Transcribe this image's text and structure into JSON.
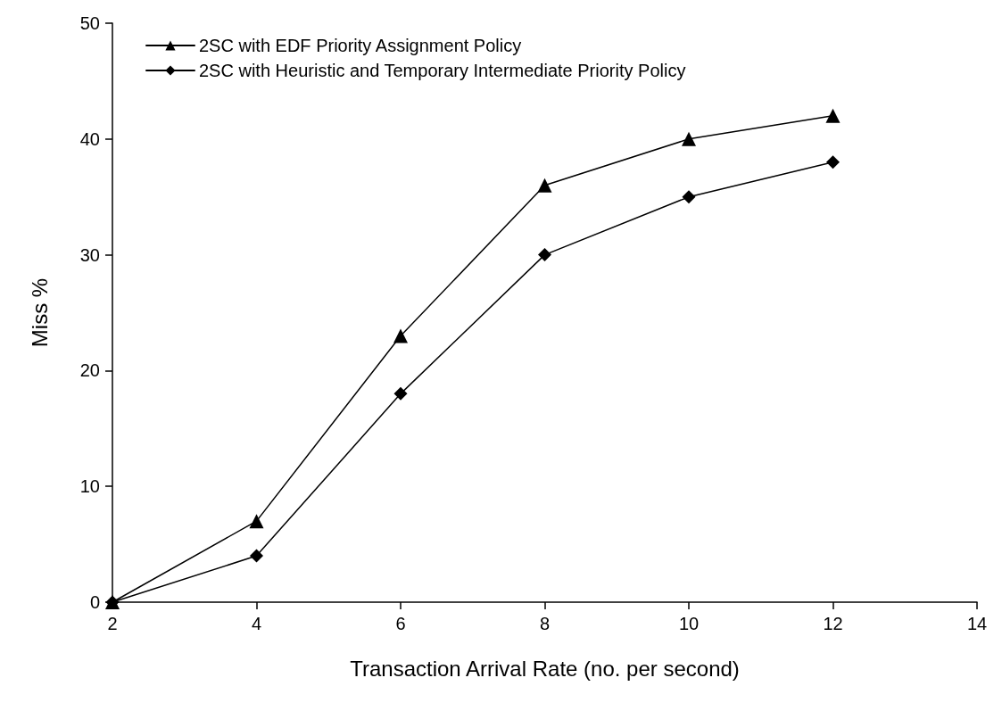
{
  "chart_data": {
    "type": "line",
    "xlabel": "Transaction Arrival Rate (no. per second)",
    "ylabel": "Miss %",
    "x": [
      2,
      4,
      6,
      8,
      10,
      12
    ],
    "xlim": [
      2,
      14
    ],
    "xticks": [
      2,
      4,
      6,
      8,
      10,
      12,
      14
    ],
    "ylim": [
      0,
      50
    ],
    "yticks": [
      0,
      10,
      20,
      30,
      40,
      50
    ],
    "grid": false,
    "legend": "top left",
    "line_style": "solid",
    "series": [
      {
        "name": "2SC with EDF Priority Assignment Policy",
        "color": "#000000",
        "marker": "triangle",
        "values": [
          0,
          7,
          23,
          36,
          40,
          42
        ]
      },
      {
        "name": "2SC with Heuristic and Temporary Intermediate Priority Policy",
        "color": "#000000",
        "marker": "diamond",
        "values": [
          0,
          4,
          18,
          30,
          35,
          38
        ]
      }
    ]
  }
}
